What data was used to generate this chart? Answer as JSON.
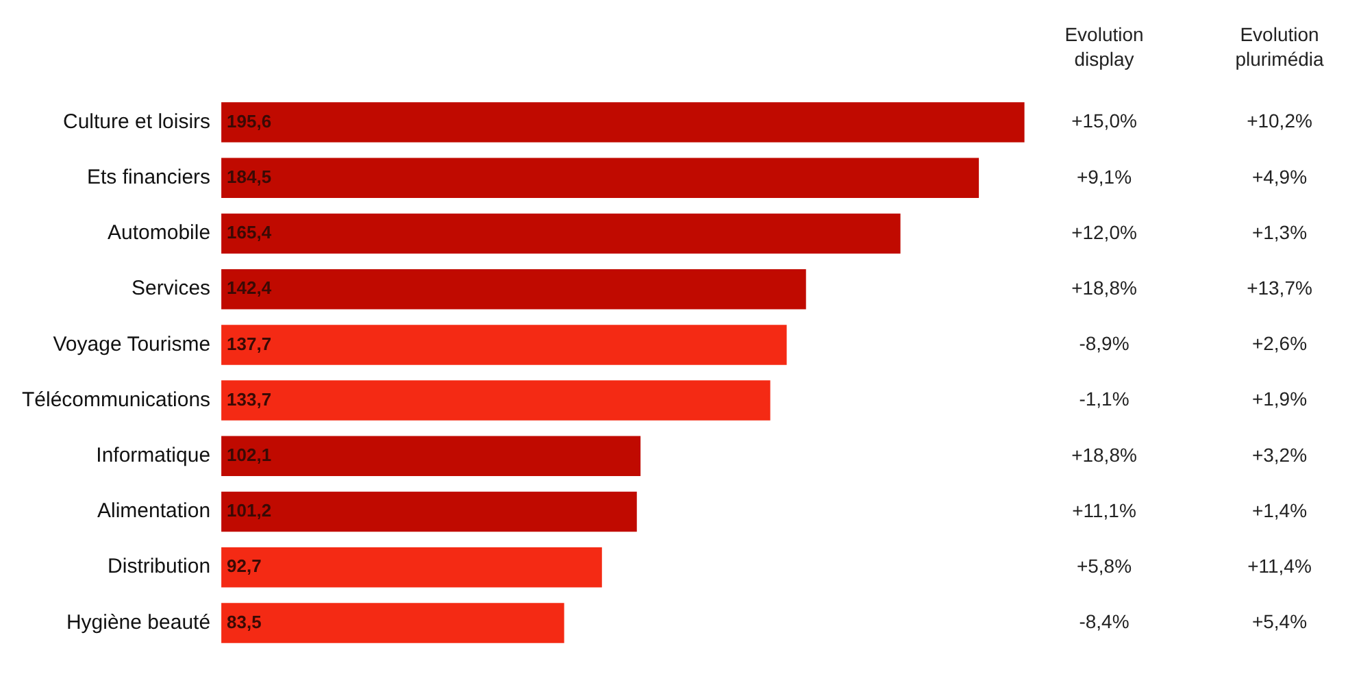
{
  "chart_data": {
    "type": "bar",
    "orientation": "horizontal",
    "categories": [
      "Culture et loisirs",
      "Ets financiers",
      "Automobile",
      "Services",
      "Voyage Tourisme",
      "Télécommunications",
      "Informatique",
      "Alimentation",
      "Distribution",
      "Hygiène beauté"
    ],
    "values": [
      195.6,
      184.5,
      165.4,
      142.4,
      137.7,
      133.7,
      102.1,
      101.2,
      92.7,
      83.5
    ],
    "colors": [
      "#c00a00",
      "#c00a00",
      "#c00a00",
      "#c00a00",
      "#f42a14",
      "#f42a14",
      "#c00a00",
      "#c00a00",
      "#f42a14",
      "#f42a14"
    ],
    "value_labels": [
      "195,6",
      "184,5",
      "165,4",
      "142,4",
      "137,7",
      "133,7",
      "102,1",
      "101,2",
      "92,7",
      "83,5"
    ],
    "tick_labels": "y",
    "grid": false,
    "legend": false,
    "annotations": [
      "Evolution display",
      "+15,0%",
      "+9,1%",
      "+12,0%",
      "+18,8%",
      "-8,9%",
      "-1,1%",
      "+18,8%",
      "+11,1%",
      "+5,8%",
      "-8,4%",
      "Evolution plurimédia",
      "+10,2%",
      "+4,9%",
      "+1,3%",
      "+13,7%",
      "+2,6%",
      "+1,9%",
      "+3,2%",
      "+1,4%",
      "+11,4%",
      "+5,4%"
    ]
  }
}
